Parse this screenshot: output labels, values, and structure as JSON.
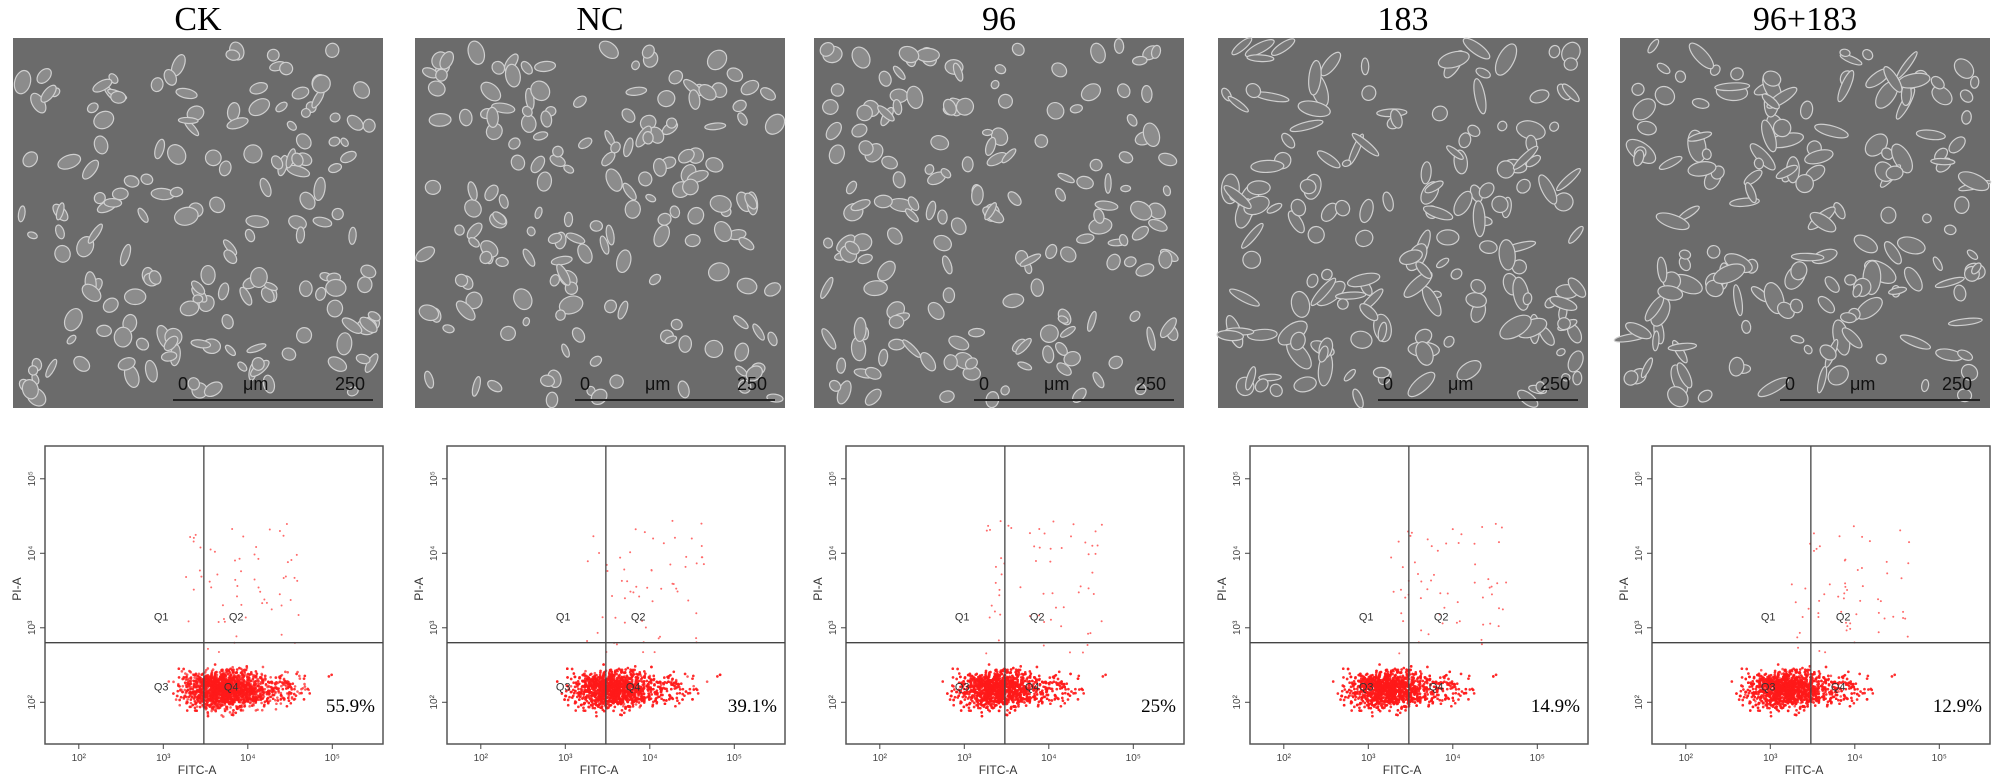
{
  "panels": [
    {
      "title": "CK",
      "scale_bar": {
        "start": "0",
        "unit": "μm",
        "end": "250"
      },
      "plot": {
        "y_label": "PI-A",
        "x_label": "FITC-A",
        "quadrants": [
          "Q1",
          "Q2",
          "Q3",
          "Q4"
        ],
        "percentage": "55.9%",
        "x_ticks": [
          "10²",
          "10³",
          "10⁴",
          "10⁵"
        ],
        "y_ticks": [
          "10²",
          "10³",
          "10⁴",
          "10⁵"
        ]
      }
    },
    {
      "title": "NC",
      "scale_bar": {
        "start": "0",
        "unit": "μm",
        "end": "250"
      },
      "plot": {
        "y_label": "PI-A",
        "x_label": "FITC-A",
        "quadrants": [
          "Q1",
          "Q2",
          "Q3",
          "Q4"
        ],
        "percentage": "39.1%",
        "x_ticks": [
          "10²",
          "10³",
          "10⁴",
          "10⁵"
        ],
        "y_ticks": [
          "10²",
          "10³",
          "10⁴",
          "10⁵"
        ]
      }
    },
    {
      "title": "96",
      "scale_bar": {
        "start": "0",
        "unit": "μm",
        "end": "250"
      },
      "plot": {
        "y_label": "PI-A",
        "x_label": "FITC-A",
        "quadrants": [
          "Q1",
          "Q2",
          "Q3",
          "Q4"
        ],
        "percentage": "25%",
        "x_ticks": [
          "10²",
          "10³",
          "10⁴",
          "10⁵"
        ],
        "y_ticks": [
          "10²",
          "10³",
          "10⁴",
          "10⁵"
        ]
      }
    },
    {
      "title": "183",
      "scale_bar": {
        "start": "0",
        "unit": "μm",
        "end": "250"
      },
      "plot": {
        "y_label": "PI-A",
        "x_label": "FITC-A",
        "quadrants": [
          "Q1",
          "Q2",
          "Q3",
          "Q4"
        ],
        "percentage": "14.9%",
        "x_ticks": [
          "10²",
          "10³",
          "10⁴",
          "10⁵"
        ],
        "y_ticks": [
          "10²",
          "10³",
          "10⁴",
          "10⁵"
        ]
      }
    },
    {
      "title": "96+183",
      "scale_bar": {
        "start": "0",
        "unit": "μm",
        "end": "250"
      },
      "plot": {
        "y_label": "PI-A",
        "x_label": "FITC-A",
        "quadrants": [
          "Q1",
          "Q2",
          "Q3",
          "Q4"
        ],
        "percentage": "12.9%",
        "x_ticks": [
          "10²",
          "10³",
          "10⁴",
          "10⁵"
        ],
        "y_ticks": [
          "10²",
          "10³",
          "10⁴",
          "10⁵"
        ]
      }
    }
  ]
}
